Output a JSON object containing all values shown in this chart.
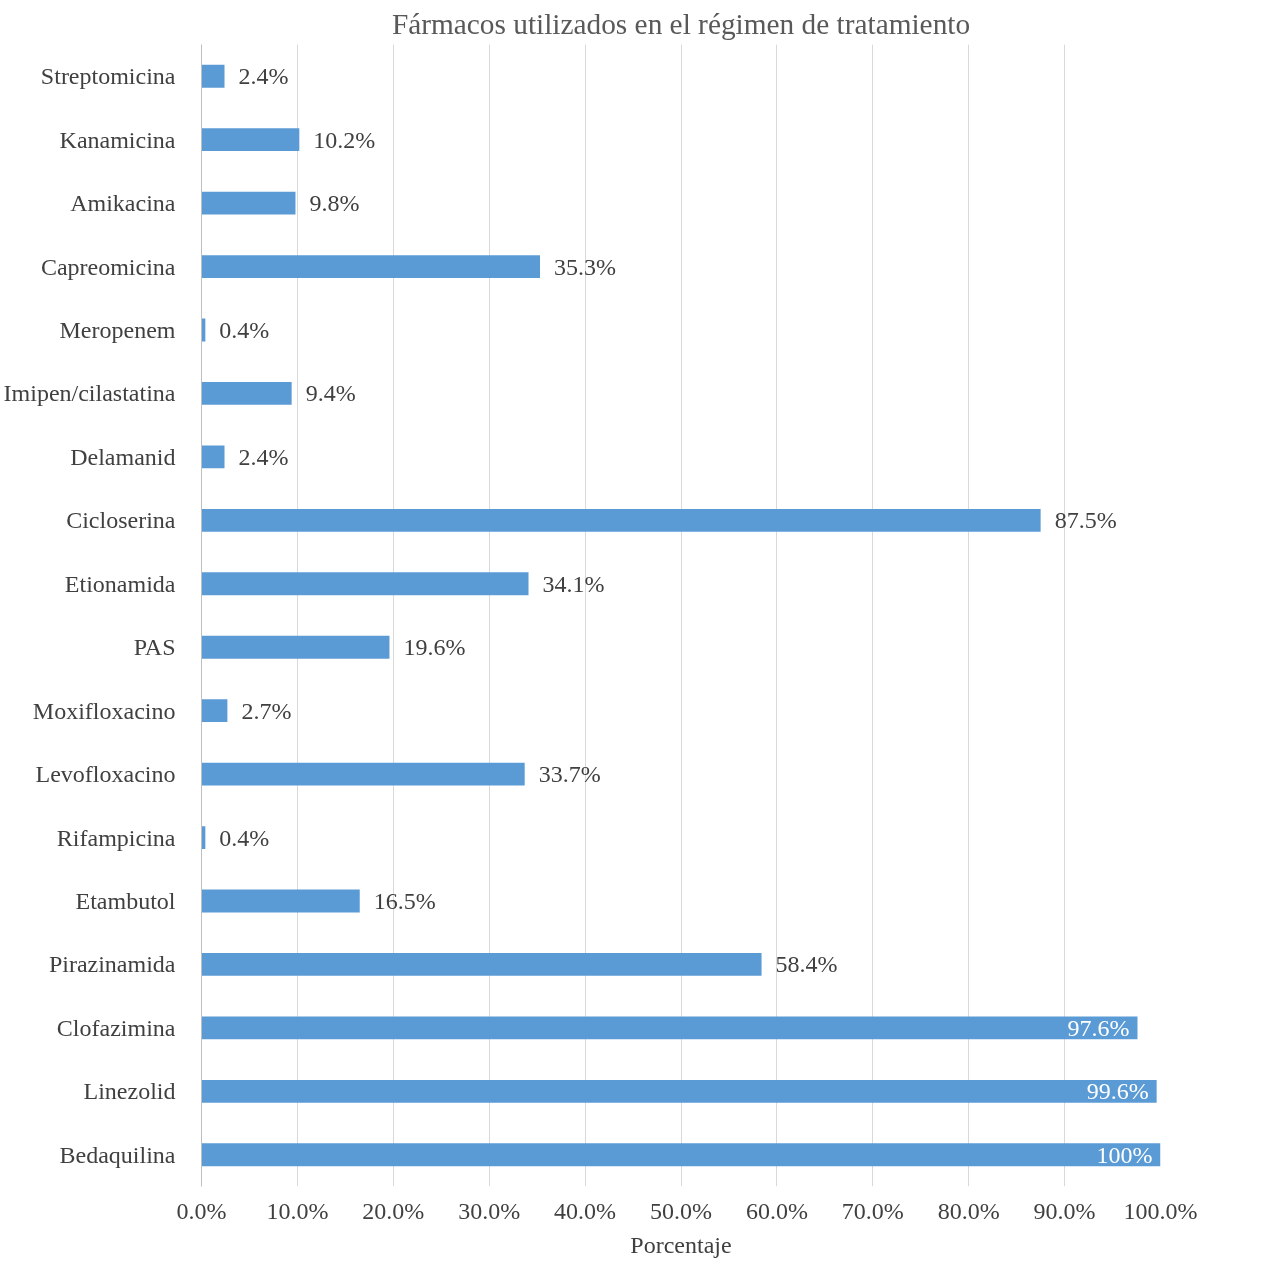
{
  "chart_data": {
    "type": "bar",
    "orientation": "horizontal",
    "title": "Fármacos utilizados en el régimen de tratamiento",
    "xlabel": "Porcentaje",
    "categories": [
      "Streptomicina",
      "Kanamicina",
      "Amikacina",
      "Capreomicina",
      "Meropenem",
      "Imipen/cilastatina",
      "Delamanid",
      "Cicloserina",
      "Etionamida",
      "PAS",
      "Moxifloxacino",
      "Levofloxacino",
      "Rifampicina",
      "Etambutol",
      "Pirazinamida",
      "Clofazimina",
      "Linezolid",
      "Bedaquilina"
    ],
    "values": [
      2.4,
      10.2,
      9.8,
      35.3,
      0.4,
      9.4,
      2.4,
      87.5,
      34.1,
      19.6,
      2.7,
      33.7,
      0.4,
      16.5,
      58.4,
      97.6,
      99.6,
      100
    ],
    "value_labels": [
      "2.4%",
      "10.2%",
      "9.8%",
      "35.3%",
      "0.4%",
      "9.4%",
      "2.4%",
      "87.5%",
      "34.1%",
      "19.6%",
      "2.7%",
      "33.7%",
      "0.4%",
      "16.5%",
      "58.4%",
      "97.6%",
      "99.6%",
      "100%"
    ],
    "color": "#5b9bd5",
    "xlim": [
      0,
      100
    ],
    "xticks": [
      {
        "value": 0,
        "label": "0.0%"
      },
      {
        "value": 10,
        "label": "10.0%"
      },
      {
        "value": 20,
        "label": "20.0%"
      },
      {
        "value": 30,
        "label": "30.0%"
      },
      {
        "value": 40,
        "label": "40.0%"
      },
      {
        "value": 50,
        "label": "50.0%"
      },
      {
        "value": 60,
        "label": "60.0%"
      },
      {
        "value": 70,
        "label": "70.0%"
      },
      {
        "value": 80,
        "label": "80.0%"
      },
      {
        "value": 90,
        "label": "90.0%"
      },
      {
        "value": 100,
        "label": "100.0%"
      }
    ],
    "grid": "x"
  }
}
